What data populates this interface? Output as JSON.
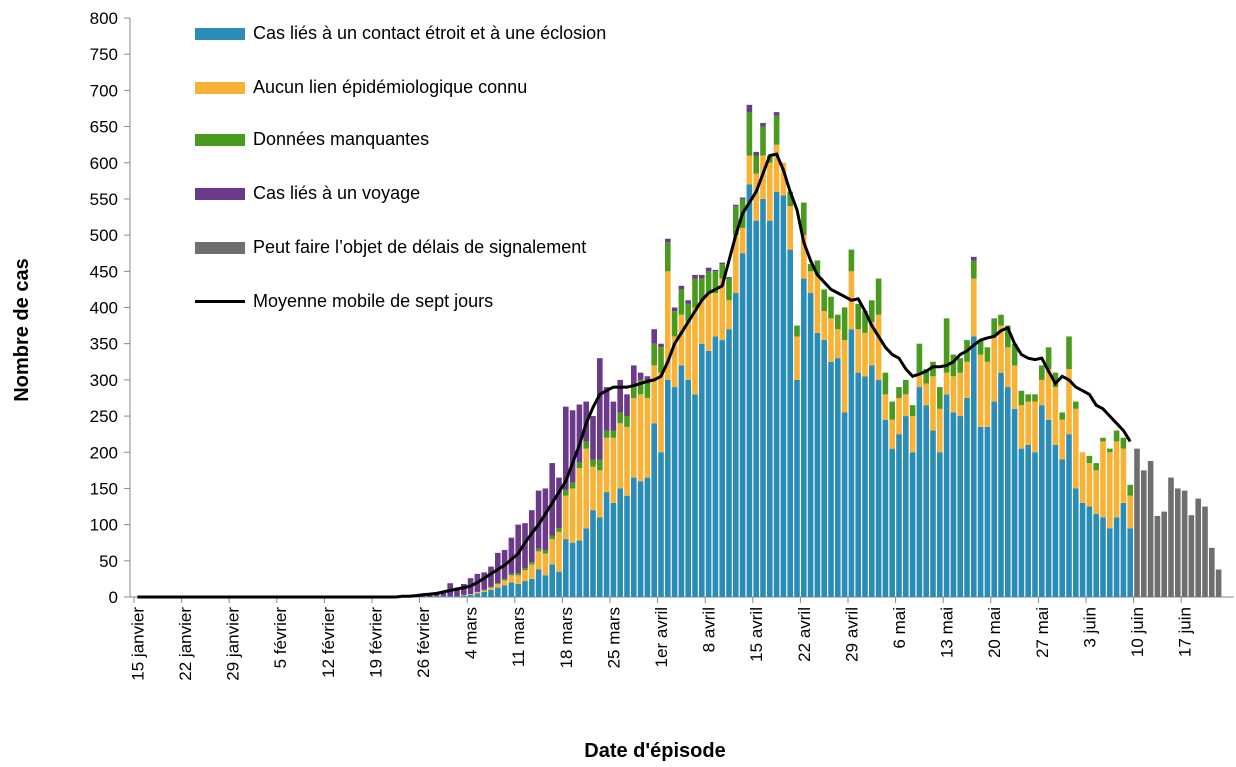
{
  "chart_data": {
    "type": "bar",
    "stacked": true,
    "y_label": "Nombre de cas",
    "x_label": "Date d'épisode",
    "ylim": [
      0,
      800
    ],
    "yticks": [
      0,
      50,
      100,
      150,
      200,
      250,
      300,
      350,
      400,
      450,
      500,
      550,
      600,
      650,
      700,
      750,
      800
    ],
    "categories": [
      "15 janvier",
      null,
      null,
      null,
      null,
      null,
      null,
      "22 janvier",
      null,
      null,
      null,
      null,
      null,
      null,
      "29 janvier",
      null,
      null,
      null,
      null,
      null,
      null,
      "5 février",
      null,
      null,
      null,
      null,
      null,
      null,
      "12 février",
      null,
      null,
      null,
      null,
      null,
      null,
      "19 février",
      null,
      null,
      null,
      null,
      null,
      null,
      "26 février",
      null,
      null,
      null,
      null,
      null,
      null,
      "4 mars",
      null,
      null,
      null,
      null,
      null,
      null,
      "11 mars",
      null,
      null,
      null,
      null,
      null,
      null,
      "18 mars",
      null,
      null,
      null,
      null,
      null,
      null,
      "25 mars",
      null,
      null,
      null,
      null,
      null,
      null,
      "1er avril",
      null,
      null,
      null,
      null,
      null,
      null,
      "8 avril",
      null,
      null,
      null,
      null,
      null,
      null,
      "15 avril",
      null,
      null,
      null,
      null,
      null,
      null,
      "22 avril",
      null,
      null,
      null,
      null,
      null,
      null,
      "29 avril",
      null,
      null,
      null,
      null,
      null,
      null,
      "6 mai",
      null,
      null,
      null,
      null,
      null,
      null,
      "13 mai",
      null,
      null,
      null,
      null,
      null,
      null,
      "20 mai",
      null,
      null,
      null,
      null,
      null,
      null,
      "27 mai",
      null,
      null,
      null,
      null,
      null,
      null,
      "3 juin",
      null,
      null,
      null,
      null,
      null,
      null,
      "10 juin",
      null,
      null,
      null,
      null,
      null,
      null,
      "17 juin",
      null,
      null,
      null,
      null,
      null
    ],
    "series": [
      {
        "name": "Cas liés à un contact étroit et à une éclosion",
        "color": "#2a8db8",
        "values": [
          0,
          0,
          0,
          0,
          0,
          0,
          0,
          0,
          0,
          0,
          0,
          0,
          0,
          0,
          0,
          0,
          0,
          0,
          0,
          0,
          0,
          0,
          0,
          0,
          0,
          0,
          0,
          0,
          0,
          0,
          0,
          0,
          0,
          0,
          0,
          0,
          0,
          0,
          0,
          0,
          0,
          0,
          0,
          0,
          1,
          1,
          1,
          1,
          2,
          3,
          5,
          7,
          10,
          13,
          16,
          20,
          18,
          22,
          25,
          38,
          30,
          45,
          35,
          80,
          75,
          78,
          95,
          120,
          110,
          145,
          130,
          150,
          140,
          165,
          160,
          165,
          240,
          200,
          300,
          290,
          320,
          300,
          280,
          350,
          340,
          360,
          355,
          370,
          420,
          475,
          570,
          520,
          550,
          520,
          560,
          555,
          480,
          300,
          440,
          420,
          365,
          355,
          325,
          330,
          255,
          370,
          310,
          305,
          320,
          300,
          245,
          205,
          225,
          250,
          200,
          290,
          265,
          230,
          200,
          280,
          255,
          250,
          275,
          360,
          235,
          235,
          270,
          310,
          290,
          260,
          205,
          210,
          200,
          265,
          245,
          210,
          190,
          225,
          150,
          130,
          125,
          115,
          110,
          95,
          110,
          130,
          95,
          null,
          null,
          null,
          null,
          null,
          null,
          null,
          null,
          null,
          null,
          null,
          null,
          null
        ]
      },
      {
        "name": "Aucun lien épidémiologique connu",
        "color": "#f8b236",
        "values": [
          0,
          0,
          0,
          0,
          0,
          0,
          0,
          0,
          0,
          0,
          0,
          0,
          0,
          0,
          0,
          0,
          0,
          0,
          0,
          0,
          0,
          0,
          0,
          0,
          0,
          0,
          0,
          0,
          0,
          0,
          0,
          0,
          0,
          0,
          0,
          0,
          0,
          0,
          0,
          0,
          0,
          0,
          0,
          0,
          0,
          0,
          0,
          0,
          1,
          1,
          2,
          2,
          3,
          5,
          7,
          10,
          12,
          15,
          20,
          25,
          30,
          35,
          55,
          60,
          75,
          100,
          110,
          60,
          65,
          75,
          90,
          90,
          95,
          110,
          120,
          110,
          80,
          110,
          150,
          70,
          70,
          80,
          120,
          60,
          80,
          60,
          85,
          40,
          80,
          35,
          40,
          65,
          60,
          80,
          65,
          45,
          60,
          60,
          60,
          30,
          80,
          40,
          60,
          40,
          100,
          80,
          60,
          60,
          60,
          90,
          35,
          40,
          50,
          30,
          50,
          20,
          30,
          75,
          60,
          30,
          50,
          60,
          50,
          80,
          100,
          90,
          90,
          65,
          55,
          60,
          60,
          60,
          70,
          35,
          70,
          80,
          55,
          90,
          110,
          70,
          60,
          60,
          105,
          105,
          105,
          75,
          45,
          null,
          null,
          null,
          null,
          null,
          null,
          null,
          null,
          null,
          null,
          null,
          null,
          null
        ]
      },
      {
        "name": "Données manquantes",
        "color": "#4a9a1e",
        "values": [
          0,
          0,
          0,
          0,
          0,
          0,
          0,
          0,
          0,
          0,
          0,
          0,
          0,
          0,
          0,
          0,
          0,
          0,
          0,
          0,
          0,
          0,
          0,
          0,
          0,
          0,
          0,
          0,
          0,
          0,
          0,
          0,
          0,
          0,
          0,
          0,
          0,
          0,
          0,
          0,
          0,
          0,
          0,
          0,
          0,
          0,
          0,
          0,
          0,
          0,
          0,
          1,
          1,
          1,
          2,
          2,
          3,
          3,
          3,
          4,
          5,
          5,
          5,
          8,
          8,
          8,
          10,
          10,
          15,
          10,
          10,
          15,
          15,
          15,
          20,
          20,
          30,
          35,
          40,
          35,
          35,
          25,
          40,
          30,
          30,
          30,
          20,
          30,
          40,
          40,
          60,
          25,
          40,
          10,
          40,
          0,
          20,
          15,
          45,
          10,
          20,
          30,
          30,
          20,
          45,
          30,
          35,
          30,
          30,
          50,
          30,
          25,
          15,
          20,
          15,
          40,
          20,
          20,
          30,
          75,
          30,
          20,
          30,
          25,
          20,
          20,
          25,
          15,
          30,
          30,
          20,
          10,
          10,
          20,
          30,
          20,
          10,
          45,
          10,
          0,
          10,
          10,
          5,
          5,
          15,
          15,
          15,
          null,
          null,
          null,
          null,
          null,
          null,
          null,
          null,
          null,
          null,
          null,
          null,
          null
        ]
      },
      {
        "name": "Cas liés à un voyage",
        "color": "#6b3a8a",
        "values": [
          0,
          0,
          0,
          0,
          0,
          0,
          0,
          0,
          0,
          0,
          0,
          0,
          0,
          0,
          0,
          0,
          0,
          0,
          0,
          0,
          0,
          0,
          0,
          0,
          0,
          0,
          0,
          0,
          0,
          0,
          0,
          0,
          0,
          0,
          0,
          0,
          0,
          0,
          0,
          0,
          1,
          2,
          2,
          3,
          3,
          5,
          18,
          12,
          15,
          22,
          25,
          24,
          28,
          42,
          40,
          50,
          67,
          62,
          72,
          80,
          85,
          100,
          70,
          115,
          100,
          80,
          55,
          60,
          140,
          60,
          40,
          45,
          30,
          30,
          10,
          10,
          20,
          5,
          5,
          5,
          5,
          5,
          5,
          5,
          5,
          2,
          2,
          2,
          2,
          2,
          10,
          5,
          5,
          0,
          5,
          0,
          0,
          0,
          0,
          0,
          0,
          0,
          0,
          0,
          0,
          0,
          0,
          0,
          0,
          0,
          0,
          0,
          0,
          0,
          0,
          0,
          0,
          0,
          0,
          0,
          0,
          0,
          0,
          5,
          0,
          0,
          0,
          0,
          0,
          0,
          0,
          0,
          0,
          0,
          0,
          0,
          0,
          0,
          0,
          0,
          0,
          0,
          0,
          0,
          0,
          0,
          0,
          null,
          null,
          null,
          null,
          null,
          null,
          null,
          null,
          null,
          null,
          null,
          null,
          null
        ]
      },
      {
        "name": "Peut faire l’objet de délais de signalement",
        "color": "#6e6e6e",
        "values": [
          null,
          null,
          null,
          null,
          null,
          null,
          null,
          null,
          null,
          null,
          null,
          null,
          null,
          null,
          null,
          null,
          null,
          null,
          null,
          null,
          null,
          null,
          null,
          null,
          null,
          null,
          null,
          null,
          null,
          null,
          null,
          null,
          null,
          null,
          null,
          null,
          null,
          null,
          null,
          null,
          null,
          null,
          null,
          null,
          null,
          null,
          null,
          null,
          null,
          null,
          null,
          null,
          null,
          null,
          null,
          null,
          null,
          null,
          null,
          null,
          null,
          null,
          null,
          null,
          null,
          null,
          null,
          null,
          null,
          null,
          null,
          null,
          null,
          null,
          null,
          null,
          null,
          null,
          null,
          null,
          null,
          null,
          null,
          null,
          null,
          null,
          null,
          null,
          null,
          null,
          null,
          null,
          null,
          null,
          null,
          null,
          null,
          null,
          null,
          null,
          null,
          null,
          null,
          null,
          null,
          null,
          null,
          null,
          null,
          null,
          null,
          null,
          null,
          null,
          null,
          null,
          null,
          null,
          null,
          null,
          null,
          null,
          null,
          null,
          null,
          null,
          null,
          null,
          null,
          null,
          null,
          null,
          null,
          null,
          null,
          null,
          null,
          null,
          null,
          null,
          null,
          null,
          null,
          null,
          null,
          null,
          null,
          205,
          175,
          188,
          112,
          118,
          165,
          150,
          147,
          113,
          136,
          125,
          68,
          38
        ]
      },
      {
        "name": "Moyenne mobile de sept jours",
        "color": "#000000",
        "type": "line",
        "values": [
          0,
          0,
          0,
          0,
          0,
          0,
          0,
          0,
          0,
          0,
          0,
          0,
          0,
          0,
          0,
          0,
          0,
          0,
          0,
          0,
          0,
          0,
          0,
          0,
          0,
          0,
          0,
          0,
          0,
          0,
          0,
          0,
          0,
          0,
          0,
          0,
          0,
          0,
          0,
          1,
          1,
          2,
          3,
          4,
          5,
          7,
          9,
          11,
          13,
          15,
          20,
          26,
          32,
          38,
          44,
          52,
          60,
          75,
          88,
          100,
          115,
          130,
          145,
          160,
          185,
          210,
          240,
          262,
          280,
          285,
          290,
          290,
          290,
          292,
          295,
          298,
          300,
          305,
          325,
          350,
          365,
          380,
          395,
          410,
          420,
          425,
          430,
          465,
          500,
          530,
          545,
          560,
          585,
          610,
          612,
          590,
          560,
          535,
          490,
          465,
          445,
          435,
          425,
          420,
          415,
          410,
          412,
          395,
          375,
          360,
          345,
          335,
          330,
          315,
          305,
          308,
          312,
          318,
          318,
          320,
          325,
          335,
          340,
          348,
          355,
          358,
          360,
          368,
          372,
          350,
          335,
          330,
          328,
          330,
          312,
          295,
          305,
          300,
          290,
          285,
          280,
          265,
          260,
          250,
          240,
          230,
          215,
          null,
          null,
          null,
          null,
          null,
          null,
          null,
          null,
          null,
          null,
          null,
          null,
          null
        ]
      }
    ]
  }
}
